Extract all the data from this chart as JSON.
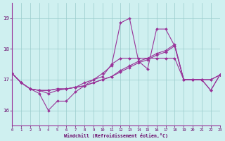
{
  "xlabel": "Windchill (Refroidissement éolien,°C)",
  "bg_color": "#cff0f0",
  "grid_color": "#99cccc",
  "line_color": "#993399",
  "xmin": 0,
  "xmax": 23,
  "ymin": 15.5,
  "ymax": 19.5,
  "yticks": [
    16,
    17,
    18,
    19
  ],
  "line_jagged_top_x": [
    0,
    1,
    2,
    3,
    4,
    5,
    6,
    7,
    8,
    9,
    10,
    11,
    12,
    13,
    14,
    15,
    16,
    17,
    18,
    19,
    20,
    21,
    22,
    23
  ],
  "line_jagged_top_y": [
    17.2,
    16.9,
    16.7,
    16.65,
    16.55,
    16.65,
    16.7,
    16.75,
    16.9,
    17.0,
    17.2,
    17.45,
    18.85,
    19.0,
    17.6,
    17.35,
    18.65,
    18.65,
    18.1,
    17.0,
    17.0,
    17.0,
    16.65,
    17.15
  ],
  "line_smooth1_x": [
    0,
    1,
    2,
    3,
    4,
    5,
    6,
    7,
    8,
    9,
    10,
    11,
    12,
    13,
    14,
    15,
    16,
    17,
    18,
    19,
    20,
    21,
    22,
    23
  ],
  "line_smooth1_y": [
    17.2,
    16.9,
    16.7,
    16.65,
    16.65,
    16.7,
    16.7,
    16.75,
    16.8,
    16.9,
    17.0,
    17.1,
    17.25,
    17.4,
    17.55,
    17.65,
    17.8,
    17.9,
    18.1,
    17.0,
    17.0,
    17.0,
    17.0,
    17.15
  ],
  "line_smooth2_x": [
    0,
    1,
    2,
    3,
    4,
    5,
    6,
    7,
    8,
    9,
    10,
    11,
    12,
    13,
    14,
    15,
    16,
    17,
    18,
    19,
    20,
    21,
    22,
    23
  ],
  "line_smooth2_y": [
    17.2,
    16.9,
    16.7,
    16.65,
    16.65,
    16.7,
    16.7,
    16.75,
    16.8,
    16.9,
    17.0,
    17.1,
    17.3,
    17.45,
    17.6,
    17.7,
    17.85,
    17.95,
    18.15,
    17.0,
    17.0,
    17.0,
    17.0,
    17.15
  ],
  "line_jagged_bot_x": [
    0,
    1,
    2,
    3,
    4,
    5,
    6,
    7,
    8,
    9,
    10,
    11,
    12,
    13,
    14,
    15,
    16,
    17,
    18,
    19,
    20,
    21,
    22,
    23
  ],
  "line_jagged_bot_y": [
    17.2,
    16.9,
    16.7,
    16.55,
    16.0,
    16.3,
    16.3,
    16.6,
    16.8,
    17.0,
    17.1,
    17.5,
    17.7,
    17.7,
    17.7,
    17.7,
    17.7,
    17.7,
    17.7,
    17.0,
    17.0,
    17.0,
    16.65,
    17.15
  ]
}
